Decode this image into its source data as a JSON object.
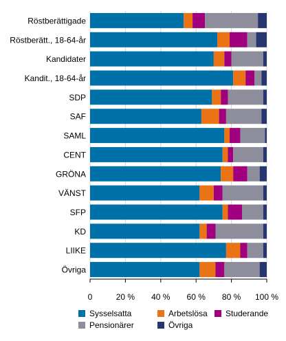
{
  "chart_data": {
    "type": "bar",
    "orientation": "horizontal",
    "stacked": true,
    "percent": true,
    "categories": [
      "Röstberättigade",
      "Röstberätt., 18-64-år",
      "Kandidater",
      "Kandit., 18-64-år",
      "SDP",
      "SAF",
      "SAML",
      "CENT",
      "GRÖNA",
      "VÄNST",
      "SFP",
      "KD",
      "LIIKE",
      "Övriga"
    ],
    "series": [
      {
        "name": "Sysselsatta",
        "color": "#0070a8",
        "values": [
          53,
          72,
          70,
          81,
          69,
          63,
          76,
          75,
          74,
          62,
          75,
          62,
          77,
          62
        ]
      },
      {
        "name": "Arbetslösa",
        "color": "#ea7316",
        "values": [
          5,
          7,
          6,
          7,
          5,
          10,
          3,
          3,
          7,
          8,
          3,
          4,
          8,
          9
        ]
      },
      {
        "name": "Studerande",
        "color": "#a0007e",
        "values": [
          7,
          10,
          4,
          5,
          4,
          4,
          6,
          3,
          8,
          5,
          8,
          5,
          4,
          5
        ]
      },
      {
        "name": "Pensionärer",
        "color": "#8d8d9b",
        "values": [
          30,
          5,
          18,
          4,
          20,
          20,
          14,
          17,
          7,
          23,
          12,
          27,
          9,
          20
        ]
      },
      {
        "name": "Övriga",
        "color": "#283670",
        "values": [
          5,
          6,
          2,
          3,
          2,
          3,
          1,
          2,
          4,
          2,
          2,
          2,
          2,
          4
        ]
      }
    ],
    "xlim": [
      0,
      100
    ],
    "xticks": [
      "0",
      "20 %",
      "40 %",
      "60 %",
      "80 %",
      "100 %"
    ],
    "xgrid": true,
    "legend_position": "bottom"
  }
}
